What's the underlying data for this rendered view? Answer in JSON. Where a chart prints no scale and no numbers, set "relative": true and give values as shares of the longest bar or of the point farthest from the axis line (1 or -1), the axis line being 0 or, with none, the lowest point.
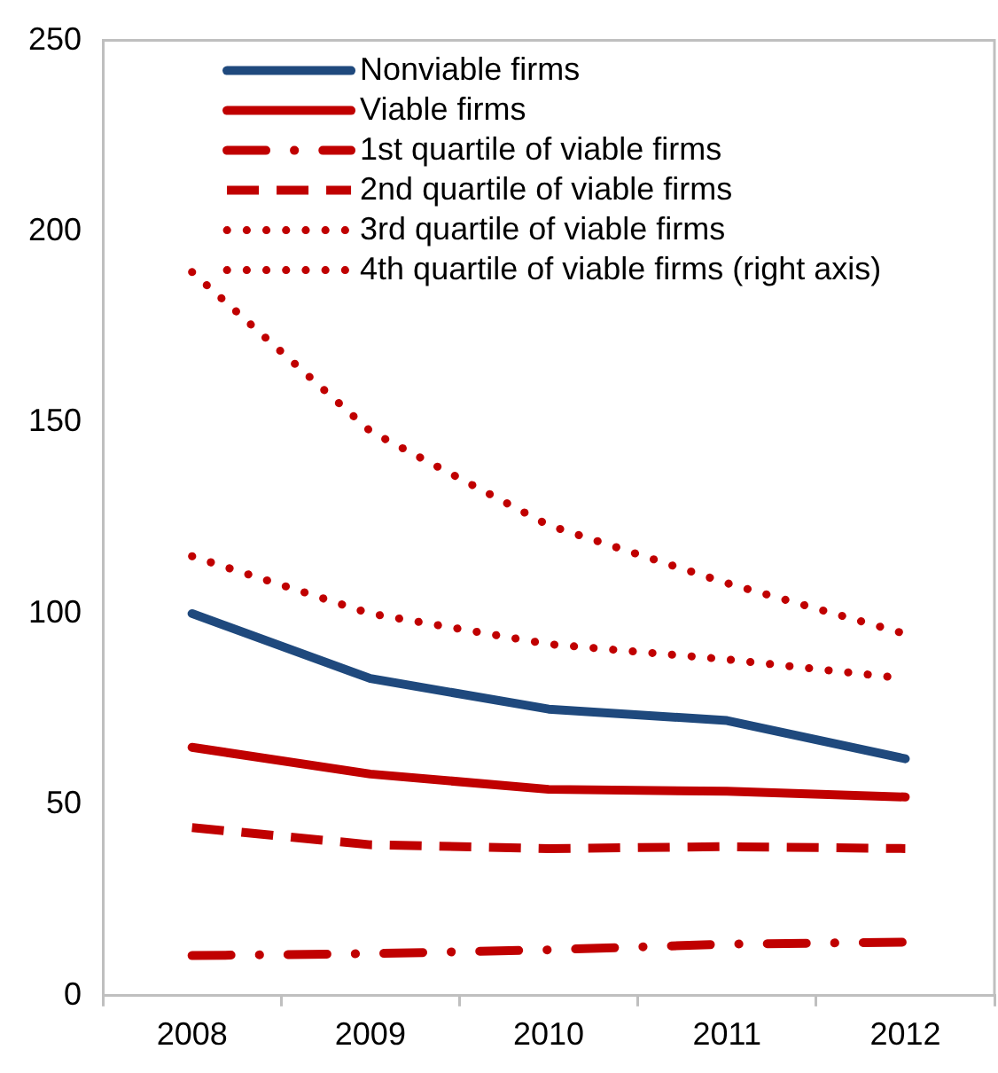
{
  "chart_data": [
    {
      "type": "line",
      "categories": [
        "2008",
        "2009",
        "2010",
        "2011",
        "2012"
      ],
      "series": [
        {
          "name": "Nonviable firms",
          "color": "#1f497d",
          "line_style": "solid",
          "values": [
            100,
            83,
            75,
            72,
            62
          ]
        },
        {
          "name": "Viable firms",
          "color": "#c00000",
          "line_style": "solid",
          "values": [
            65,
            58,
            54,
            53.5,
            52
          ]
        },
        {
          "name": "1st quartile of viable firms",
          "color": "#c00000",
          "line_style": "dashdot",
          "values": [
            10.5,
            11,
            12,
            13.5,
            14
          ]
        },
        {
          "name": "2nd quartile of viable firms",
          "color": "#c00000",
          "line_style": "dashed",
          "values": [
            44,
            39.5,
            38.5,
            39,
            38.5
          ]
        },
        {
          "name": "3rd quartile of viable firms",
          "color": "#c00000",
          "line_style": "dotted",
          "values": [
            115,
            100,
            92,
            88,
            83
          ]
        }
      ],
      "ylim": [
        0,
        250
      ],
      "yticks": [
        0,
        50,
        100,
        150,
        200,
        250
      ],
      "legend": "top",
      "marker": "none"
    },
    {
      "type": "line",
      "relative": true,
      "tick_labels": false,
      "categories": [
        "2008",
        "2009",
        "2010",
        "2011",
        "2012"
      ],
      "series": [
        {
          "name": "4th quartile of viable firms (right axis)",
          "color": "#c00000",
          "line_style": "dotted",
          "values": [
            1,
            0.78,
            0.65,
            0.57,
            0.5
          ]
        }
      ],
      "legend": "top",
      "marker": "none"
    }
  ]
}
